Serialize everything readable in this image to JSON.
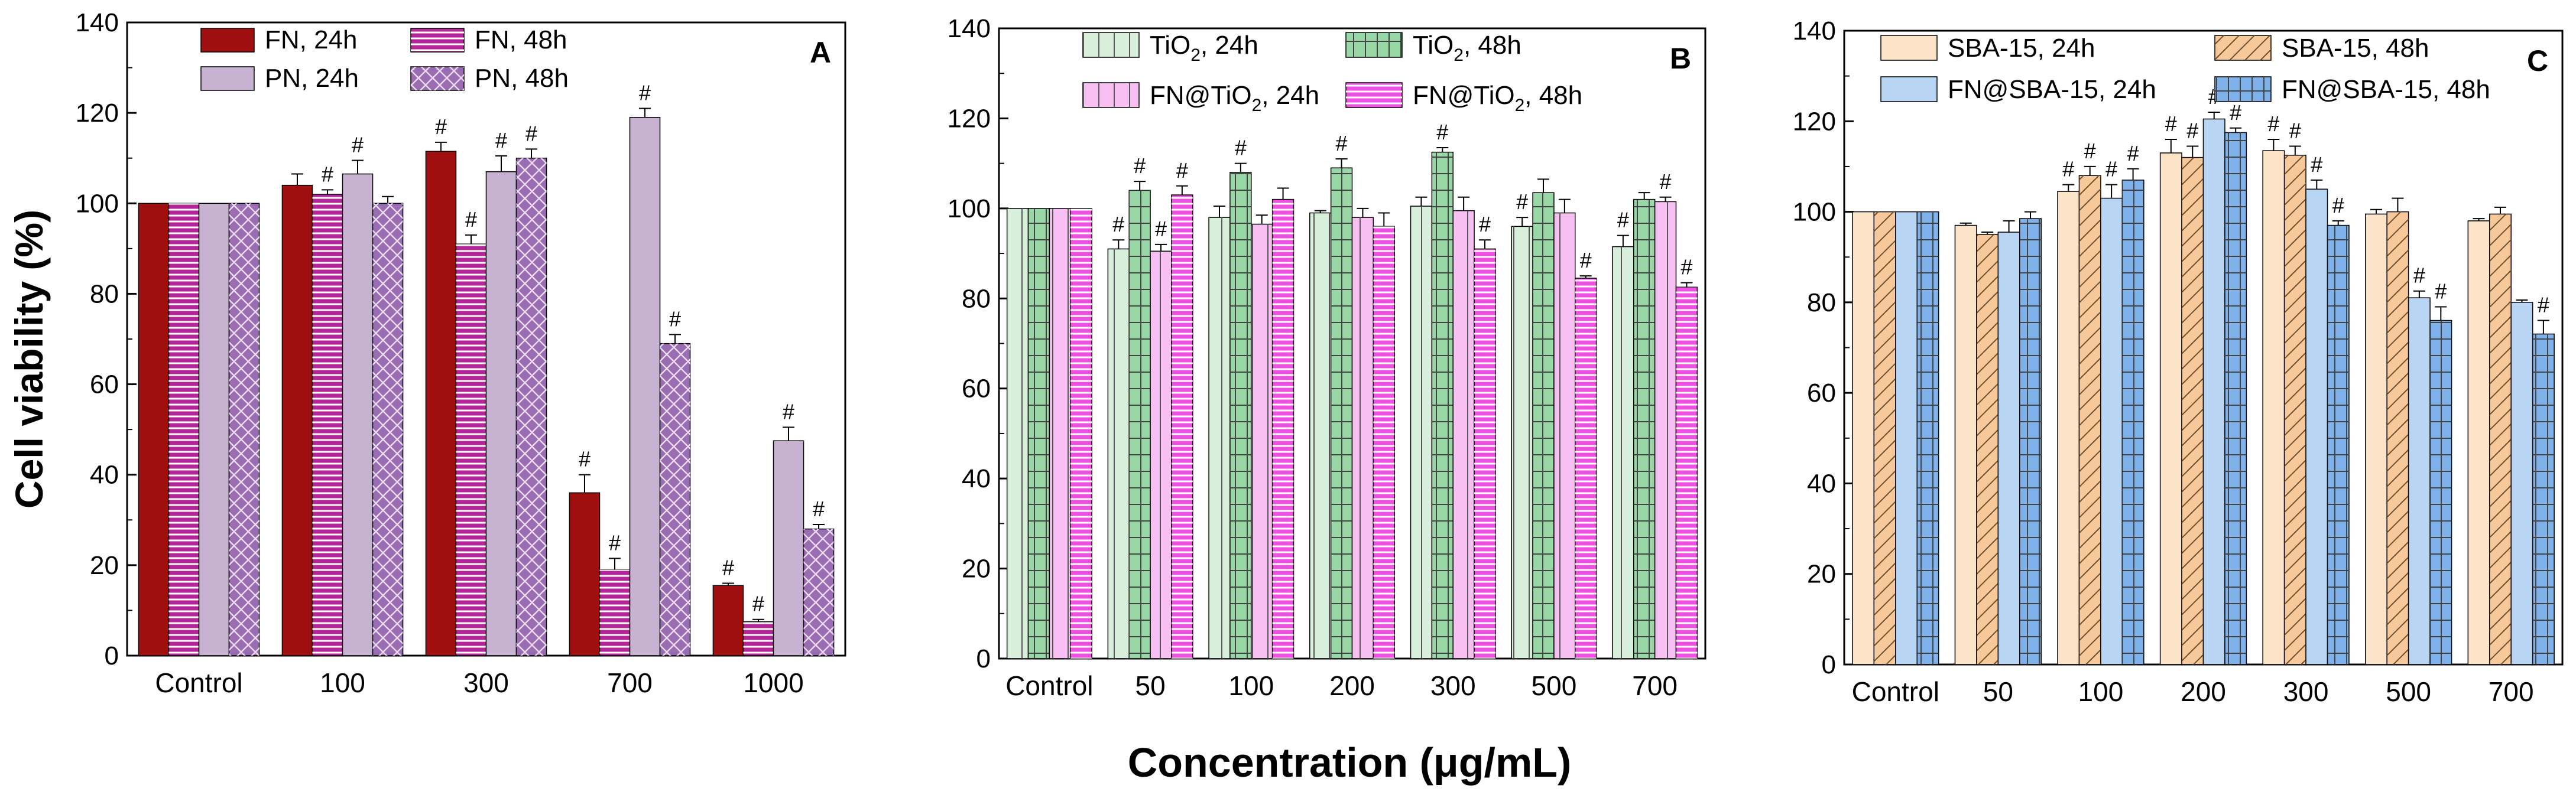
{
  "figure": {
    "ylabel": "Cell viability (%)",
    "xlabel": "Concentration (μg/mL)"
  },
  "chart_data": [
    {
      "type": "bar",
      "panel_label": "A",
      "categories": [
        "Control",
        "100",
        "300",
        "700",
        "1000"
      ],
      "ylim": [
        0,
        140
      ],
      "yticks": [
        0,
        20,
        40,
        60,
        80,
        100,
        120,
        140
      ],
      "legend_placement": "top-left",
      "grid": false,
      "series": [
        {
          "name": "FN, 24h",
          "fill": "#a00f0f",
          "pattern": "solid",
          "values": [
            100,
            104,
            111.5,
            36,
            15.5
          ],
          "errors": [
            0,
            2.5,
            2,
            4,
            0.5
          ],
          "sig": [
            false,
            false,
            true,
            true,
            true
          ]
        },
        {
          "name": "FN, 48h",
          "fill": "#b5259a",
          "pattern": "hlines",
          "values": [
            100,
            102,
            91,
            19,
            7.5
          ],
          "errors": [
            0,
            1,
            2,
            2.5,
            0.5
          ],
          "sig": [
            false,
            true,
            true,
            true,
            true
          ]
        },
        {
          "name": "PN, 24h",
          "fill": "#c8b2d2",
          "pattern": "solid",
          "values": [
            100,
            106.5,
            107,
            119,
            47.5
          ],
          "errors": [
            0,
            3,
            3.5,
            2,
            3
          ],
          "sig": [
            false,
            true,
            true,
            true,
            true
          ]
        },
        {
          "name": "PN, 48h",
          "fill": "#9a6cb2",
          "pattern": "cross",
          "values": [
            100,
            100,
            110,
            69,
            28
          ],
          "errors": [
            0,
            1.5,
            2,
            2,
            1
          ],
          "sig": [
            false,
            false,
            true,
            true,
            true
          ]
        }
      ]
    },
    {
      "type": "bar",
      "panel_label": "B",
      "categories": [
        "Control",
        "50",
        "100",
        "200",
        "300",
        "500",
        "700"
      ],
      "ylim": [
        0,
        140
      ],
      "yticks": [
        0,
        20,
        40,
        60,
        80,
        100,
        120,
        140
      ],
      "legend_placement": "top-left",
      "grid": false,
      "series": [
        {
          "name": "TiO2, 24h",
          "name_main": "TiO",
          "name_sub": "2",
          "name_rest": ", 24h",
          "fill": "#d8efdc",
          "pattern": "vlines",
          "values": [
            100,
            91,
            98,
            99,
            100.5,
            96,
            91.5
          ],
          "errors": [
            0,
            2,
            2.5,
            0.5,
            2,
            2,
            2.5
          ],
          "sig": [
            false,
            true,
            false,
            false,
            false,
            true,
            true
          ]
        },
        {
          "name": "TiO2, 48h",
          "name_main": "TiO",
          "name_sub": "2",
          "name_rest": ", 48h",
          "fill": "#9ad7a6",
          "pattern": "grid",
          "values": [
            100,
            104,
            108,
            109,
            112.5,
            103.5,
            102
          ],
          "errors": [
            0,
            2,
            2,
            2,
            1,
            3,
            1.5
          ],
          "sig": [
            false,
            true,
            true,
            true,
            true,
            false,
            false
          ]
        },
        {
          "name": "FN@TiO2, 24h",
          "name_main": "FN@TiO",
          "name_sub": "2",
          "name_rest": ", 24h",
          "fill": "#f8c0f2",
          "pattern": "vlines",
          "values": [
            100,
            90.5,
            96.5,
            98,
            99.5,
            99,
            101.5
          ],
          "errors": [
            0,
            1.5,
            2,
            2,
            3,
            3,
            1
          ],
          "sig": [
            false,
            true,
            false,
            false,
            false,
            false,
            true
          ]
        },
        {
          "name": "FN@TiO2, 48h",
          "name_main": "FN@TiO",
          "name_sub": "2",
          "name_rest": ", 48h",
          "fill": "#f050e2",
          "pattern": "hlines",
          "values": [
            100,
            103,
            102,
            96,
            91,
            84.5,
            82.5
          ],
          "errors": [
            0,
            2,
            2.5,
            3,
            2,
            0.5,
            1
          ],
          "sig": [
            false,
            true,
            false,
            false,
            true,
            true,
            true
          ]
        }
      ]
    },
    {
      "type": "bar",
      "panel_label": "C",
      "categories": [
        "Control",
        "50",
        "100",
        "200",
        "300",
        "500",
        "700"
      ],
      "ylim": [
        0,
        140
      ],
      "yticks": [
        0,
        20,
        40,
        60,
        80,
        100,
        120,
        140
      ],
      "legend_placement": "top-left",
      "grid": false,
      "series": [
        {
          "name": "SBA-15, 24h",
          "fill": "#fbe4c8",
          "pattern": "solid",
          "values": [
            100,
            97,
            104.5,
            113,
            113.5,
            99.5,
            98
          ],
          "errors": [
            0,
            0.5,
            1.5,
            3,
            2.5,
            1,
            0.5
          ],
          "sig": [
            false,
            false,
            true,
            true,
            true,
            false,
            false
          ]
        },
        {
          "name": "SBA-15, 48h",
          "fill": "#f7c99a",
          "pattern": "diag",
          "values": [
            100,
            95,
            108,
            112,
            112.5,
            100,
            99.5
          ],
          "errors": [
            0,
            0.5,
            2,
            2.5,
            2,
            3,
            1.5
          ],
          "sig": [
            false,
            false,
            true,
            true,
            true,
            false,
            false
          ]
        },
        {
          "name": "FN@SBA-15, 24h",
          "fill": "#b8d6f4",
          "pattern": "solid",
          "values": [
            100,
            95.5,
            103,
            120.5,
            105,
            81,
            80
          ],
          "errors": [
            0,
            2.5,
            3,
            1.5,
            2,
            1.5,
            0.5
          ],
          "sig": [
            false,
            false,
            true,
            true,
            true,
            true,
            false
          ]
        },
        {
          "name": "FN@SBA-15, 48h",
          "fill": "#7fb2ea",
          "pattern": "grid",
          "values": [
            100,
            98.5,
            107,
            117.5,
            97,
            76,
            73
          ],
          "errors": [
            0,
            1.5,
            2.5,
            1,
            1,
            3,
            3
          ],
          "sig": [
            false,
            false,
            true,
            true,
            true,
            true,
            true
          ]
        }
      ]
    }
  ]
}
